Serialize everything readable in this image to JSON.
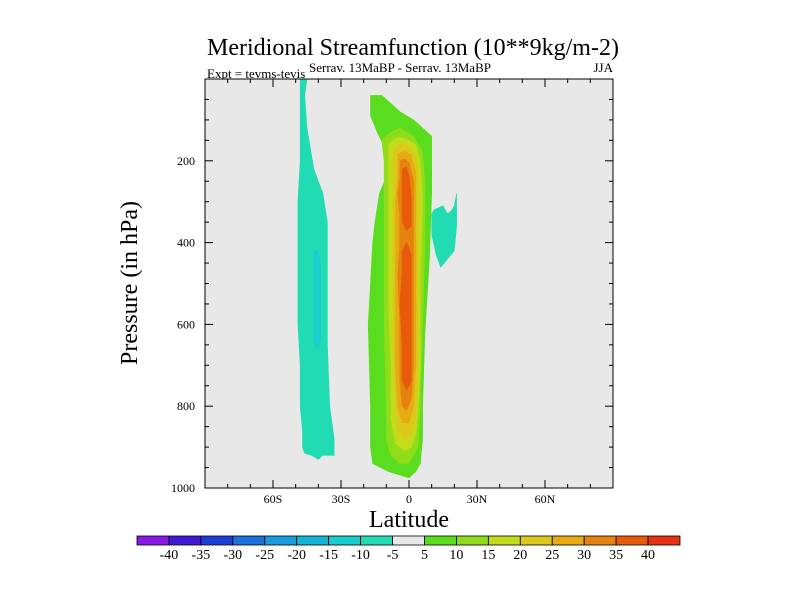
{
  "chart_data": {
    "type": "heatmap",
    "title": "Meridional Streamfunction (10**9kg/m-2)",
    "subtitle": "Serrav.  13MaBP - Serrav.  13MaBP",
    "season": "JJA",
    "experiment": "Expt = tevms-tevis",
    "xlabel": "Latitude",
    "ylabel": "Pressure (in hPa)",
    "xlim": [
      -90,
      90
    ],
    "ylim": [
      1000,
      0
    ],
    "x_ticks": [
      {
        "value": -60,
        "label": "60S"
      },
      {
        "value": -30,
        "label": "30S"
      },
      {
        "value": 0,
        "label": "0"
      },
      {
        "value": 30,
        "label": "30N"
      },
      {
        "value": 60,
        "label": "60N"
      }
    ],
    "y_ticks": [
      {
        "value": 200,
        "label": "200"
      },
      {
        "value": 400,
        "label": "400"
      },
      {
        "value": 600,
        "label": "600"
      },
      {
        "value": 800,
        "label": "800"
      },
      {
        "value": 1000,
        "label": "1000"
      }
    ],
    "background_color": "#e8e8e8",
    "colorbar": {
      "labels": [
        "-40",
        "-35",
        "-30",
        "-25",
        "-20",
        "-15",
        "-10",
        "-5",
        "5",
        "10",
        "15",
        "20",
        "25",
        "30",
        "35",
        "40"
      ],
      "colors": [
        "#8a19e6",
        "#3f19d6",
        "#1b3fd6",
        "#1a71dc",
        "#1a9ce0",
        "#13b6d6",
        "#18cdcd",
        "#21dcb2",
        "#e8e8e8",
        "#5adc1f",
        "#8fdc1a",
        "#c2dc1a",
        "#dcc81a",
        "#e6aa12",
        "#e6820f",
        "#e65a0a",
        "#e63212"
      ]
    },
    "regions": [
      {
        "level": -5,
        "color": "#21dcb2",
        "points": [
          [
            -48,
            0
          ],
          [
            -45,
            0
          ],
          [
            -46,
            40
          ],
          [
            -45,
            120
          ],
          [
            -42,
            220
          ],
          [
            -38,
            280
          ],
          [
            -36,
            350
          ],
          [
            -36,
            500
          ],
          [
            -36,
            650
          ],
          [
            -35,
            800
          ],
          [
            -33,
            880
          ],
          [
            -33,
            920
          ],
          [
            -38,
            920
          ],
          [
            -40,
            930
          ],
          [
            -43,
            920
          ],
          [
            -46,
            915
          ],
          [
            -47,
            900
          ],
          [
            -47,
            860
          ],
          [
            -48,
            800
          ],
          [
            -48,
            700
          ],
          [
            -49,
            600
          ],
          [
            -49,
            500
          ],
          [
            -49,
            400
          ],
          [
            -49,
            300
          ],
          [
            -48,
            200
          ],
          [
            -48,
            100
          ]
        ]
      },
      {
        "level": -10,
        "color": "#18cdcd",
        "points": [
          [
            -42,
            420
          ],
          [
            -40,
            420
          ],
          [
            -39,
            460
          ],
          [
            -39,
            560
          ],
          [
            -39,
            640
          ],
          [
            -41,
            660
          ],
          [
            -42,
            640
          ],
          [
            -42,
            560
          ],
          [
            -42,
            480
          ]
        ]
      },
      {
        "level": -5,
        "color": "#21dcb2",
        "points": [
          [
            10,
            330
          ],
          [
            11,
            320
          ],
          [
            15,
            310
          ],
          [
            17,
            330
          ],
          [
            19,
            320
          ],
          [
            20,
            310
          ],
          [
            21,
            280
          ],
          [
            21,
            360
          ],
          [
            20,
            420
          ],
          [
            17,
            440
          ],
          [
            14,
            460
          ],
          [
            12,
            430
          ],
          [
            10,
            380
          ]
        ]
      },
      {
        "level": 5,
        "color": "#5adc1f",
        "points": [
          [
            -17,
            40
          ],
          [
            -12,
            40
          ],
          [
            -8,
            60
          ],
          [
            -4,
            80
          ],
          [
            2,
            100
          ],
          [
            10,
            140
          ],
          [
            10,
            280
          ],
          [
            9,
            440
          ],
          [
            7,
            620
          ],
          [
            6,
            800
          ],
          [
            6,
            880
          ],
          [
            5,
            940
          ],
          [
            3,
            960
          ],
          [
            0,
            975
          ],
          [
            -3,
            970
          ],
          [
            -9,
            960
          ],
          [
            -16,
            940
          ],
          [
            -17,
            900
          ],
          [
            -17,
            800
          ],
          [
            -18,
            600
          ],
          [
            -17,
            500
          ],
          [
            -16,
            400
          ],
          [
            -15,
            350
          ],
          [
            -13,
            280
          ],
          [
            -10,
            240
          ],
          [
            -9,
            190
          ],
          [
            -11,
            165
          ],
          [
            -14,
            130
          ],
          [
            -17,
            90
          ]
        ]
      },
      {
        "level": 10,
        "color": "#8fdc1a",
        "points": [
          [
            -12,
            150
          ],
          [
            -8,
            130
          ],
          [
            -4,
            120
          ],
          [
            2,
            140
          ],
          [
            6,
            180
          ],
          [
            7,
            250
          ],
          [
            7,
            400
          ],
          [
            6,
            600
          ],
          [
            5,
            800
          ],
          [
            4,
            900
          ],
          [
            2,
            920
          ],
          [
            0,
            940
          ],
          [
            -4,
            940
          ],
          [
            -8,
            920
          ],
          [
            -10,
            880
          ],
          [
            -10,
            800
          ],
          [
            -11,
            600
          ],
          [
            -11,
            500
          ],
          [
            -11,
            400
          ],
          [
            -11,
            300
          ],
          [
            -11,
            200
          ]
        ]
      },
      {
        "level": 15,
        "color": "#c2dc1a",
        "points": [
          [
            -9,
            160
          ],
          [
            -6,
            145
          ],
          [
            -2,
            145
          ],
          [
            3,
            160
          ],
          [
            5,
            200
          ],
          [
            6,
            300
          ],
          [
            5,
            500
          ],
          [
            5,
            700
          ],
          [
            4,
            800
          ],
          [
            3,
            870
          ],
          [
            1,
            900
          ],
          [
            -2,
            910
          ],
          [
            -6,
            890
          ],
          [
            -8,
            830
          ],
          [
            -8,
            700
          ],
          [
            -9,
            550
          ],
          [
            -9,
            400
          ],
          [
            -9,
            250
          ]
        ]
      },
      {
        "level": 20,
        "color": "#dcc81a",
        "points": [
          [
            -7,
            175
          ],
          [
            -4,
            160
          ],
          [
            -1,
            160
          ],
          [
            2,
            180
          ],
          [
            4,
            220
          ],
          [
            4,
            350
          ],
          [
            4,
            500
          ],
          [
            4,
            700
          ],
          [
            3,
            820
          ],
          [
            1,
            870
          ],
          [
            -2,
            880
          ],
          [
            -5,
            860
          ],
          [
            -6,
            800
          ],
          [
            -7,
            650
          ],
          [
            -7,
            500
          ],
          [
            -7,
            350
          ],
          [
            -7,
            250
          ]
        ]
      },
      {
        "level": 25,
        "color": "#e6aa12",
        "points": [
          [
            -5,
            185
          ],
          [
            -2,
            175
          ],
          [
            1,
            185
          ],
          [
            3,
            230
          ],
          [
            3,
            360
          ],
          [
            3,
            500
          ],
          [
            3,
            700
          ],
          [
            2,
            800
          ],
          [
            0,
            840
          ],
          [
            -3,
            840
          ],
          [
            -5,
            800
          ],
          [
            -6,
            700
          ],
          [
            -6,
            550
          ],
          [
            -6,
            420
          ],
          [
            -6,
            300
          ],
          [
            -5,
            240
          ]
        ]
      },
      {
        "level": 30,
        "color": "#e6820f",
        "points": [
          [
            -4,
            200
          ],
          [
            -2,
            195
          ],
          [
            0,
            205
          ],
          [
            2,
            250
          ],
          [
            2,
            330
          ],
          [
            2,
            420
          ],
          [
            2,
            550
          ],
          [
            2,
            700
          ],
          [
            1,
            780
          ],
          [
            -1,
            810
          ],
          [
            -3,
            800
          ],
          [
            -4,
            740
          ],
          [
            -4,
            600
          ],
          [
            -5,
            480
          ],
          [
            -4,
            400
          ],
          [
            -4,
            340
          ],
          [
            -5,
            280
          ],
          [
            -4,
            240
          ]
        ]
      },
      {
        "level": 35,
        "color": "#e65a0a",
        "points": [
          [
            -3,
            220
          ],
          [
            -1,
            215
          ],
          [
            0,
            240
          ],
          [
            1,
            290
          ],
          [
            1,
            360
          ],
          [
            -1,
            370
          ],
          [
            -3,
            350
          ],
          [
            -3,
            300
          ]
        ]
      },
      {
        "level": 35,
        "color": "#e65a0a",
        "points": [
          [
            -3,
            420
          ],
          [
            -1,
            400
          ],
          [
            1,
            430
          ],
          [
            1,
            520
          ],
          [
            1,
            640
          ],
          [
            1,
            740
          ],
          [
            -1,
            760
          ],
          [
            -3,
            740
          ],
          [
            -3,
            650
          ],
          [
            -4,
            550
          ],
          [
            -3,
            470
          ]
        ]
      }
    ]
  }
}
